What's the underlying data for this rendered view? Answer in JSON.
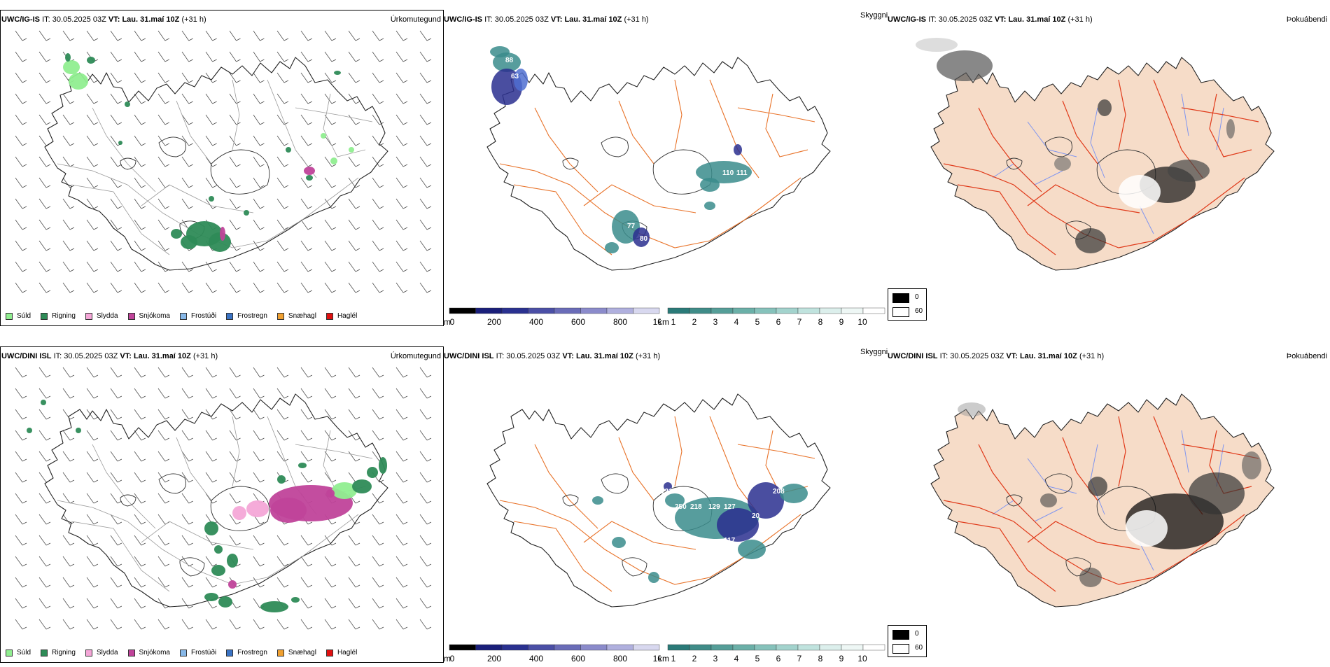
{
  "rows": [
    {
      "model": "UWC/IG-IS",
      "it_label": "IT:",
      "it_value": "30.05.2025 03Z",
      "vt_label": "VT:",
      "vt_value": "Lau. 31.maí 10Z",
      "lead": "(+31 h)",
      "labels": {
        "precip": "Úrkomutegund",
        "sky": "Skyggni",
        "fog": "Þokuábendi"
      }
    },
    {
      "model": "UWC/DINI ISL",
      "it_label": "IT:",
      "it_value": "30.05.2025 03Z",
      "vt_label": "VT:",
      "vt_value": "Lau. 31.maí 10Z",
      "lead": "(+31 h)",
      "labels": {
        "precip": "Úrkomutegund",
        "sky": "Skyggni",
        "fog": "Þokuábendi"
      }
    }
  ],
  "precip_legend": [
    {
      "label": "Súld",
      "color": "#90ee90"
    },
    {
      "label": "Rigning",
      "color": "#2e8b57"
    },
    {
      "label": "Slydda",
      "color": "#f4a6d7"
    },
    {
      "label": "Snjókoma",
      "color": "#c0439a"
    },
    {
      "label": "Frostúði",
      "color": "#87b8e8"
    },
    {
      "label": "Frostregn",
      "color": "#3a73c4"
    },
    {
      "label": "Snæhagl",
      "color": "#f0a030"
    },
    {
      "label": "Haglél",
      "color": "#e01010"
    }
  ],
  "height_bar": {
    "unit": "m",
    "ticks": [
      "0",
      "200",
      "400",
      "600",
      "800",
      "1000"
    ]
  },
  "vis_bar": {
    "unit": "km",
    "ticks": [
      "1",
      "2",
      "3",
      "4",
      "5",
      "6",
      "7",
      "8",
      "9",
      "10"
    ]
  },
  "fog_legend": [
    "0",
    "60"
  ],
  "row1_sky_labels": [
    "88",
    "63",
    "110",
    "111",
    "80",
    "77"
  ],
  "row2_sky_labels": [
    "250",
    "218",
    "129",
    "127",
    "208",
    "117",
    "20",
    "121"
  ],
  "colors": {
    "land": "#f6dcc8",
    "roads": "#e8732a",
    "roads_red": "#e03a1a",
    "rivers": "#7f95f0",
    "rain": "#2e8b57",
    "drizzle": "#90ee90",
    "snow": "#c0439a",
    "sleet": "#f4a6d7",
    "vis_teal": "#3a8c8c",
    "vis_blue": "#2a2f8f"
  }
}
